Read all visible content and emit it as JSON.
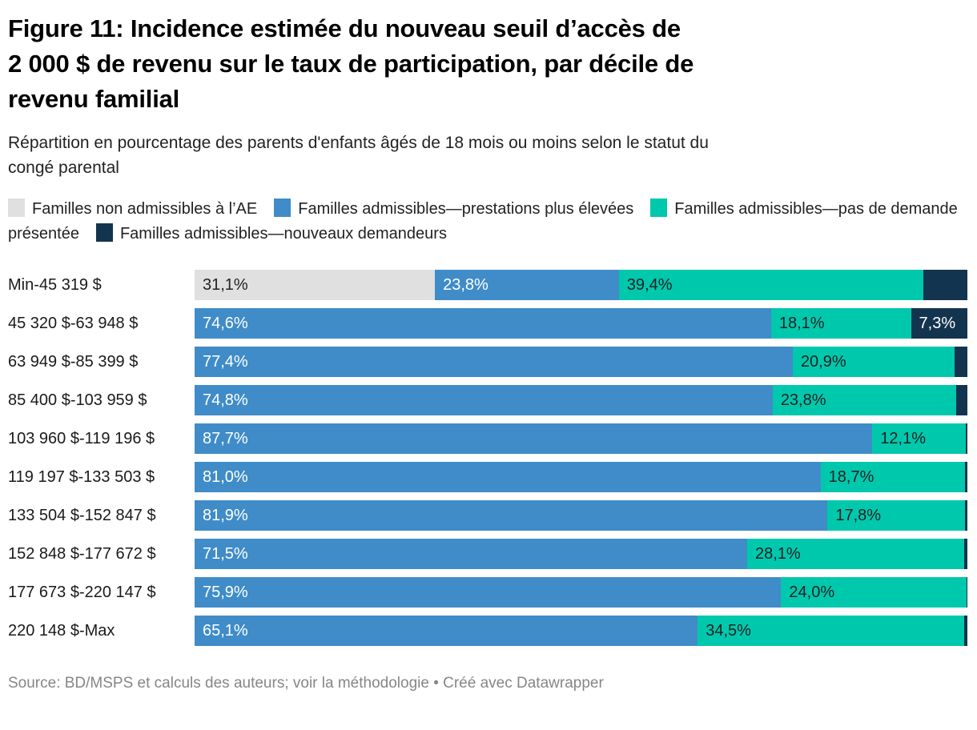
{
  "header": {
    "title_lines": [
      "Figure 11: Incidence estimée du nouveau seuil d’accès de",
      "2 000 $ de revenu sur le taux de participation, par décile de",
      "revenu familial"
    ],
    "subtitle_lines": [
      "Répartition en pourcentage des parents d'enfants âgés de 18 mois ou moins selon le statut du",
      "congé parental"
    ]
  },
  "legend": {
    "position": "top",
    "items": [
      {
        "label": "Familles non admissibles à l’AE",
        "color": "#e0e0e0"
      },
      {
        "label": "Familles admissibles—prestations plus élevées",
        "color": "#3f8cc9"
      },
      {
        "label": "Familles admissibles—pas de demande présentée",
        "color": "#00c8ad"
      },
      {
        "label": "Familles admissibles—nouveaux demandeurs",
        "color": "#13344f"
      }
    ]
  },
  "chart_data": {
    "type": "bar",
    "stacked": true,
    "orientation": "horizontal",
    "unit": "%",
    "xlim": [
      0,
      100
    ],
    "grid": false,
    "categories": [
      "Min-45 319 $",
      "45 320 $-63 948 $",
      "63 949 $-85 399 $",
      "85 400 $-103 959 $",
      "103 960 $-119 196 $",
      "119 197 $-133 503 $",
      "133 504 $-152 847 $",
      "152 848 $-177 672 $",
      "177 673 $-220 147 $",
      "220 148 $-Max"
    ],
    "series": [
      {
        "name": "Familles non admissibles à l’AE",
        "color": "#e0e0e0",
        "label_color": "#222222",
        "values": [
          31.1,
          0,
          0,
          0,
          0,
          0,
          0,
          0,
          0,
          0
        ],
        "labels": [
          "31,1%",
          null,
          null,
          null,
          null,
          null,
          null,
          null,
          null,
          null
        ]
      },
      {
        "name": "Familles admissibles—prestations plus élevées",
        "color": "#3f8cc9",
        "label_color": "#ffffff",
        "values": [
          23.8,
          74.6,
          77.4,
          74.8,
          87.7,
          81.0,
          81.9,
          71.5,
          75.9,
          65.1
        ],
        "labels": [
          "23,8%",
          "74,6%",
          "77,4%",
          "74,8%",
          "87,7%",
          "81,0%",
          "81,9%",
          "71,5%",
          "75,9%",
          "65,1%"
        ]
      },
      {
        "name": "Familles admissibles—pas de demande présentée",
        "color": "#00c8ad",
        "label_color": "#222222",
        "values": [
          39.4,
          18.1,
          20.9,
          23.8,
          12.1,
          18.7,
          17.8,
          28.1,
          24.0,
          34.5
        ],
        "labels": [
          "39,4%",
          "18,1%",
          "20,9%",
          "23,8%",
          "12,1%",
          "18,7%",
          "17,8%",
          "28,1%",
          "24,0%",
          "34,5%"
        ]
      },
      {
        "name": "Familles admissibles—nouveaux demandeurs",
        "color": "#13344f",
        "label_color": "#ffffff",
        "values": [
          5.7,
          7.3,
          1.7,
          1.4,
          0.2,
          0.3,
          0.3,
          0.4,
          0.1,
          0.4
        ],
        "labels": [
          null,
          "7,3%",
          null,
          null,
          null,
          null,
          null,
          null,
          null,
          null
        ]
      }
    ]
  },
  "footer": {
    "source": "Source: BD/MSPS et calculs des auteurs; voir la méthodologie • Créé avec Datawrapper"
  }
}
